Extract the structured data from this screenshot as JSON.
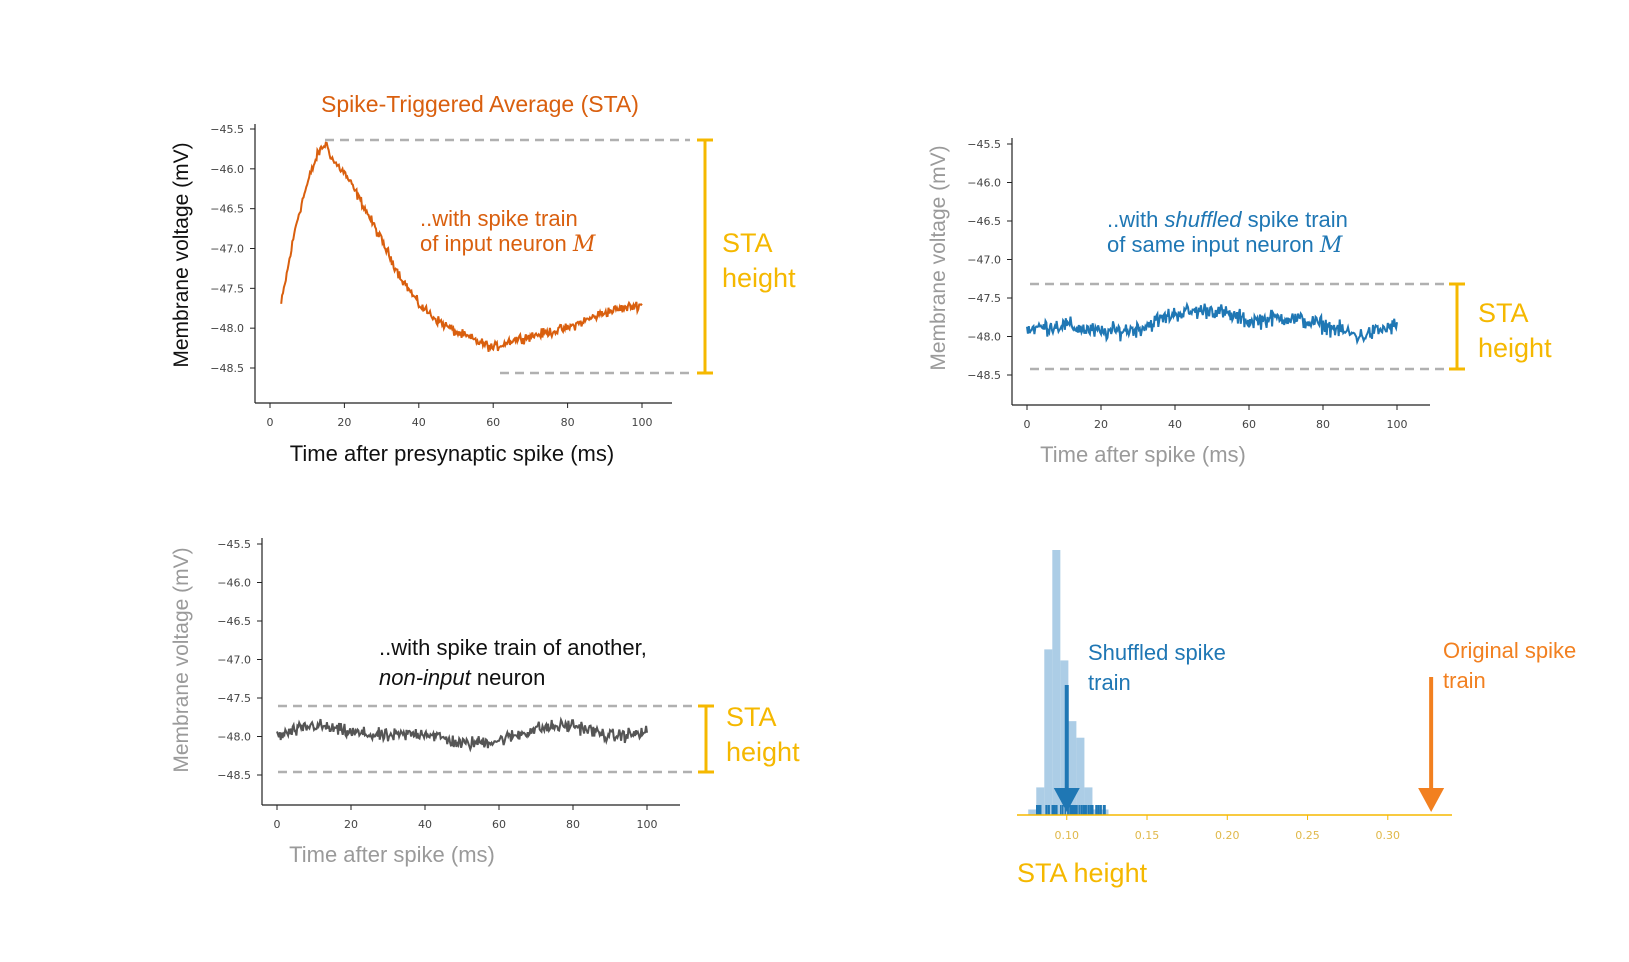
{
  "colors": {
    "orange": "#d95f0e",
    "orange_bright": "#f28020",
    "blue": "#1f77b4",
    "blue_light": "#9ec4e2",
    "gray_trace": "#555555",
    "gold": "#f5b800",
    "axis_gray": "#9a9a9a",
    "dashed": "#b0b0b0"
  },
  "panels": {
    "p1": {
      "title": "Spike-Triggered Average (STA)",
      "ylabel": "Membrane voltage (mV)",
      "xlabel": "Time after presynaptic spike (ms)",
      "annot_line1": "..with spike train",
      "annot_line2_prefix": "of input neuron ",
      "annot_var": "M",
      "sta_line1": "STA",
      "sta_line2": "height"
    },
    "p2": {
      "ylabel": "Membrane voltage (mV)",
      "xlabel": "Time after spike (ms)",
      "annot_line1_prefix": "..with ",
      "annot_line1_em": "shuffled",
      "annot_line1_suffix": " spike train",
      "annot_line2_prefix": "of same input neuron ",
      "annot_var": "M",
      "sta_line1": "STA",
      "sta_line2": "height"
    },
    "p3": {
      "ylabel": "Membrane voltage (mV)",
      "xlabel": "Time after spike (ms)",
      "annot_line1": "..with spike train of another,",
      "annot_line2_em": "non-input",
      "annot_line2_suffix": " neuron",
      "sta_line1": "STA",
      "sta_line2": "height"
    },
    "p4": {
      "xlabel": "STA height",
      "shuffled_label_line1": "Shuffled spike",
      "shuffled_label_line2": "train",
      "original_label_line1": "Original spike",
      "original_label_line2": "train"
    }
  },
  "chart_data": [
    {
      "type": "line",
      "title": "Spike-Triggered Average (STA)",
      "xlabel": "Time after presynaptic spike (ms)",
      "ylabel": "Membrane voltage (mV)",
      "xlim": [
        -5,
        105
      ],
      "ylim": [
        -48.85,
        -45.4
      ],
      "xticks": [
        0,
        20,
        40,
        60,
        80,
        100
      ],
      "yticks": [
        -45.5,
        -46.0,
        -46.5,
        -47.0,
        -47.5,
        -48.0,
        -48.5
      ],
      "series": [
        {
          "x": [
            3,
            5,
            7,
            9,
            11,
            13,
            15,
            17,
            20,
            25,
            30,
            35,
            40,
            45,
            50,
            55,
            60,
            65,
            70,
            75,
            80,
            85,
            90,
            95,
            100
          ],
          "y": [
            -47.7,
            -47.2,
            -46.7,
            -46.35,
            -46.05,
            -45.8,
            -45.68,
            -45.9,
            -46.05,
            -46.45,
            -46.9,
            -47.35,
            -47.7,
            -47.9,
            -48.05,
            -48.15,
            -48.25,
            -48.15,
            -48.1,
            -48.05,
            -48.0,
            -47.9,
            -47.8,
            -47.75,
            -47.7
          ]
        }
      ],
      "sta_range": [
        -48.45,
        -45.6
      ]
    },
    {
      "type": "line",
      "xlabel": "Time after spike (ms)",
      "ylabel": "Membrane voltage (mV)",
      "xlim": [
        -5,
        105
      ],
      "ylim": [
        -48.85,
        -45.4
      ],
      "xticks": [
        0,
        20,
        40,
        60,
        80,
        100
      ],
      "yticks": [
        -45.5,
        -46.0,
        -46.5,
        -47.0,
        -47.5,
        -48.0,
        -48.5
      ],
      "series": [
        {
          "x": [
            0,
            10,
            20,
            30,
            40,
            50,
            60,
            70,
            80,
            90,
            100
          ],
          "y": [
            -47.9,
            -47.85,
            -47.95,
            -47.9,
            -47.7,
            -47.65,
            -47.8,
            -47.75,
            -47.85,
            -48.0,
            -47.85
          ]
        }
      ],
      "sta_range": [
        -48.4,
        -47.28
      ]
    },
    {
      "type": "line",
      "xlabel": "Time after spike (ms)",
      "ylabel": "Membrane voltage (mV)",
      "xlim": [
        -5,
        105
      ],
      "ylim": [
        -48.85,
        -45.4
      ],
      "xticks": [
        0,
        20,
        40,
        60,
        80,
        100
      ],
      "yticks": [
        -45.5,
        -46.0,
        -46.5,
        -47.0,
        -47.5,
        -48.0,
        -48.5
      ],
      "series": [
        {
          "x": [
            0,
            10,
            20,
            30,
            40,
            50,
            60,
            70,
            80,
            90,
            100
          ],
          "y": [
            -48.0,
            -47.85,
            -47.95,
            -48.0,
            -47.95,
            -48.1,
            -48.05,
            -47.9,
            -47.85,
            -48.0,
            -47.95
          ]
        }
      ],
      "sta_range": [
        -48.4,
        -47.55
      ]
    },
    {
      "type": "bar",
      "xlabel": "STA height",
      "xlim": [
        0.069,
        0.34
      ],
      "xticks": [
        0.1,
        0.15,
        0.2,
        0.25,
        0.3
      ],
      "bins": [
        0.076,
        0.081,
        0.086,
        0.091,
        0.096,
        0.101,
        0.106,
        0.111,
        0.116,
        0.121,
        0.126
      ],
      "counts": [
        1,
        5,
        30,
        48,
        28,
        17,
        14,
        5,
        1,
        1
      ],
      "shuffled_mean": 0.1,
      "original_value": 0.327
    }
  ]
}
